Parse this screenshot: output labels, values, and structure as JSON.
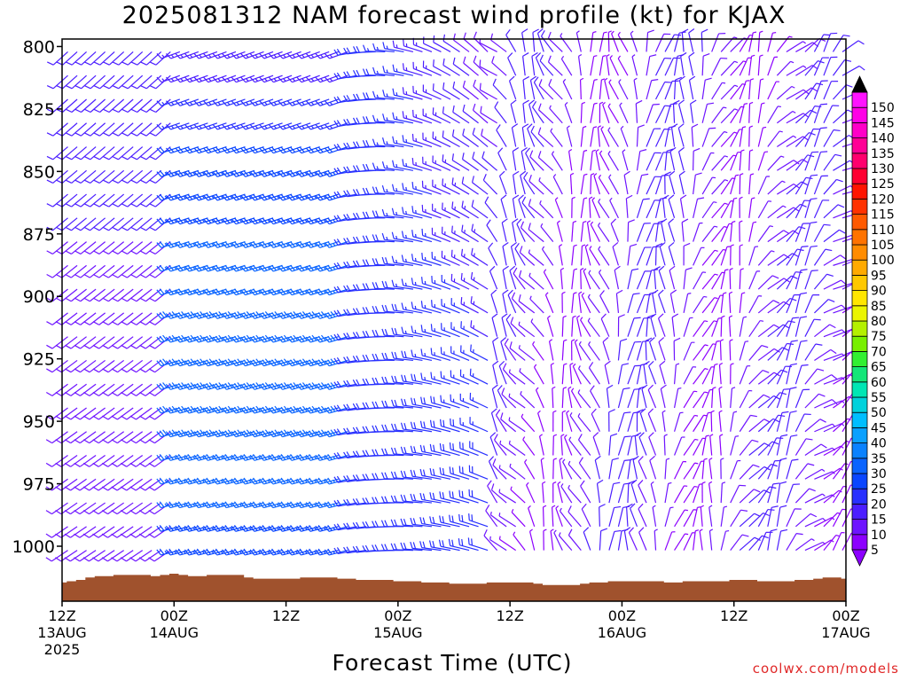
{
  "chart_data": {
    "type": "wind-barb-timeheight",
    "title": "2025081312 NAM forecast wind profile (kt) for KJAX",
    "xlabel": "Forecast Time (UTC)",
    "ylabel": "",
    "y_axis": {
      "scale": "pressure (hPa), increasing downward",
      "ylim": [
        797,
        1022
      ],
      "ticks": [
        800,
        825,
        850,
        875,
        900,
        925,
        950,
        975,
        1000
      ]
    },
    "x_axis": {
      "start": "2025-08-13 12Z",
      "end": "2025-08-17 00Z",
      "ticks": [
        {
          "hour": 0,
          "label": "12Z",
          "date": "13AUG",
          "year": "2025"
        },
        {
          "hour": 12,
          "label": "00Z",
          "date": "14AUG",
          "year": ""
        },
        {
          "hour": 24,
          "label": "12Z",
          "date": "",
          "year": ""
        },
        {
          "hour": 36,
          "label": "00Z",
          "date": "15AUG",
          "year": ""
        },
        {
          "hour": 48,
          "label": "12Z",
          "date": "",
          "year": ""
        },
        {
          "hour": 60,
          "label": "00Z",
          "date": "16AUG",
          "year": ""
        },
        {
          "hour": 72,
          "label": "12Z",
          "date": "",
          "year": ""
        },
        {
          "hour": 84,
          "label": "00Z",
          "date": "17AUG",
          "year": ""
        }
      ]
    },
    "colorbar": {
      "levels": [
        5,
        10,
        15,
        20,
        25,
        30,
        35,
        40,
        45,
        50,
        55,
        60,
        65,
        70,
        75,
        80,
        85,
        90,
        95,
        100,
        105,
        110,
        115,
        120,
        125,
        130,
        135,
        140,
        145,
        150
      ],
      "colors": [
        "#8c00ff",
        "#6e14ff",
        "#4b1eff",
        "#2830ff",
        "#0a46ff",
        "#0a64ff",
        "#0a82ff",
        "#0aa0ff",
        "#00beff",
        "#00d2dc",
        "#00e6b4",
        "#14e678",
        "#32f032",
        "#78f000",
        "#b4f000",
        "#ebf500",
        "#ffe600",
        "#ffc800",
        "#ffaa00",
        "#ff8c00",
        "#ff7300",
        "#ff5a00",
        "#ff3200",
        "#ff1400",
        "#ff0032",
        "#ff006e",
        "#ff0096",
        "#ff00c8",
        "#ff00e6",
        "#ff14ff"
      ]
    },
    "wind_regimes": [
      {
        "from_hour": 0,
        "to_hour": 12,
        "direction": "southwest",
        "speed_kt": [
          5,
          12
        ]
      },
      {
        "from_hour": 13,
        "to_hour": 31,
        "direction": "west-southwest",
        "speed_kt": [
          15,
          30
        ]
      },
      {
        "from_hour": 32,
        "to_hour": 46,
        "direction": "west to northwest",
        "speed_kt": [
          8,
          20
        ]
      },
      {
        "from_hour": 46,
        "to_hour": 84,
        "direction": "northwest to northeast",
        "speed_kt": [
          3,
          12
        ]
      }
    ],
    "terrain": {
      "color": "#a0522d",
      "surface_pressure_hpa": [
        1014.5,
        1014.0,
        1013.5,
        1012.5,
        1012.0,
        1012.0,
        1011.5,
        1011.5,
        1011.5,
        1011.5,
        1012.0,
        1011.5,
        1011.0,
        1011.5,
        1012.0,
        1012.0,
        1011.5,
        1011.5,
        1011.5,
        1011.5,
        1012.5,
        1013.0,
        1013.0,
        1013.0,
        1013.0,
        1013.0,
        1012.5,
        1012.5,
        1012.5,
        1012.5,
        1013.0,
        1013.0,
        1013.5,
        1013.5,
        1013.5,
        1013.5,
        1014.0,
        1014.0,
        1014.0,
        1014.5,
        1014.5,
        1014.5,
        1015.0,
        1015.0,
        1015.0,
        1015.0,
        1014.5,
        1014.5,
        1014.5,
        1014.5,
        1014.5,
        1015.0,
        1015.5,
        1015.5,
        1015.5,
        1015.5,
        1015.0,
        1014.5,
        1014.5,
        1014.0,
        1014.0,
        1014.0,
        1014.0,
        1014.0,
        1014.0,
        1014.5,
        1014.5,
        1014.0,
        1014.0,
        1014.0,
        1014.0,
        1014.0,
        1013.5,
        1013.5,
        1013.5,
        1014.0,
        1014.0,
        1014.0,
        1014.0,
        1013.5,
        1013.5,
        1013.0,
        1012.5,
        1012.5,
        1013.0
      ]
    }
  },
  "credit": "coolwx.com/models"
}
